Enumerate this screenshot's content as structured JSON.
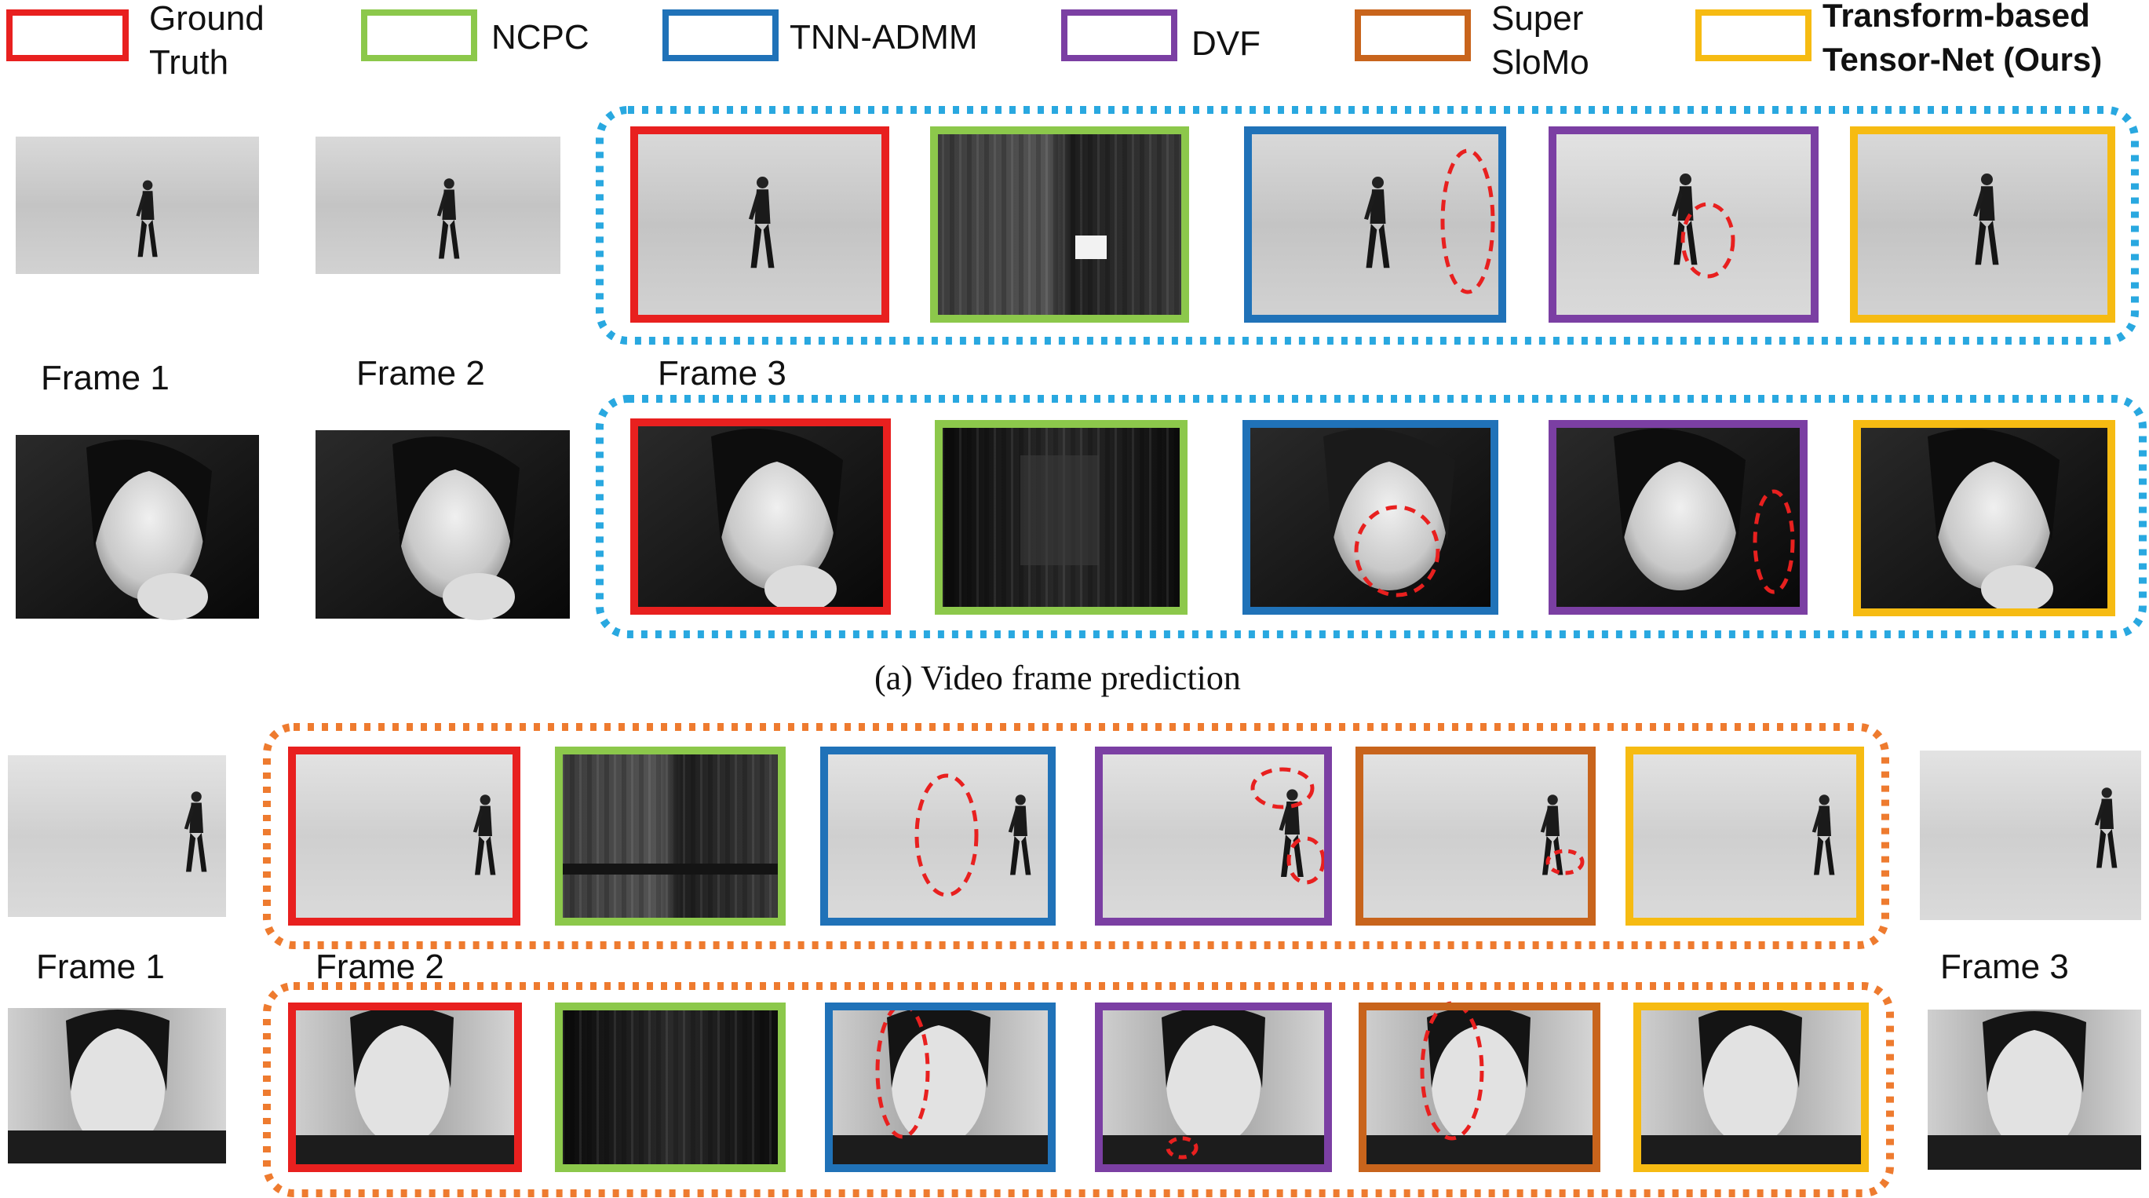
{
  "legend": [
    {
      "lines": [
        "Ground",
        "Truth"
      ],
      "color": "#e8201f",
      "bold": false
    },
    {
      "lines": [
        "NCPC"
      ],
      "color": "#8cc84b",
      "bold": false
    },
    {
      "lines": [
        "TNN-ADMM"
      ],
      "color": "#2072b8",
      "bold": false
    },
    {
      "lines": [
        "DVF"
      ],
      "color": "#7b3fa3",
      "bold": false
    },
    {
      "lines": [
        "Super",
        "SloMo"
      ],
      "color": "#c8641c",
      "bold": false
    },
    {
      "lines": [
        "Transform-based",
        "Tensor-Net (Ours)"
      ],
      "color": "#f6bb12",
      "bold": true
    }
  ],
  "section_a": {
    "frame_labels": [
      "Frame 1",
      "Frame 2",
      "Frame 3"
    ],
    "caption": "(a) Video frame prediction",
    "group_border_color": "#29a8e0"
  },
  "section_b": {
    "frame_labels": [
      "Frame 1",
      "Frame 2",
      "Frame 3"
    ],
    "group_border_color": "#ee7b2f"
  },
  "artifact_marker_color": "#e8201f"
}
